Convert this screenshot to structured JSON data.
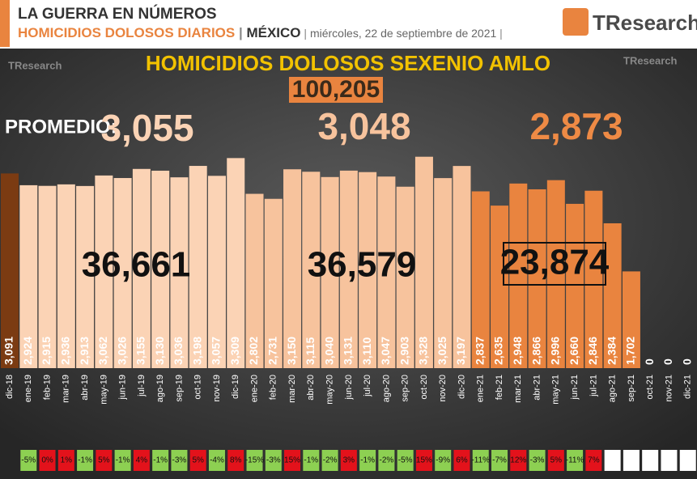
{
  "header": {
    "kicker": "LA GUERRA EN NÚMEROS",
    "subject": "HOMICIDIOS DOLOSOS DIARIOS",
    "country": "MÉXICO",
    "date": "miércoles, 22 de septiembre de 2021",
    "logo": "TResearch"
  },
  "chart_data": {
    "type": "bar",
    "title": "HOMICIDIOS DOLOSOS SEXENIO AMLO",
    "total_label": "100,205",
    "average_caption": "PROMEDIO:",
    "averages": [
      "3,055",
      "3,048",
      "2,873"
    ],
    "group_totals": [
      "36,661",
      "36,579",
      "23,874"
    ],
    "categories": [
      "dic-18",
      "ene-19",
      "feb-19",
      "mar-19",
      "abr-19",
      "may-19",
      "jun-19",
      "jul-19",
      "ago-19",
      "sep-19",
      "oct-19",
      "nov-19",
      "dic-19",
      "ene-20",
      "feb-20",
      "mar-20",
      "abr-20",
      "may-20",
      "jun-20",
      "jul-20",
      "ago-20",
      "sep-20",
      "oct-20",
      "nov-20",
      "dic-20",
      "ene-21",
      "feb-21",
      "mar-21",
      "abr-21",
      "may-21",
      "jun-21",
      "jul-21",
      "ago-21",
      "sep-21",
      "oct-21",
      "nov-21",
      "dic-21"
    ],
    "values": [
      3091,
      2924,
      2915,
      2936,
      2913,
      3062,
      3026,
      3155,
      3130,
      3036,
      3198,
      3057,
      3309,
      2802,
      2731,
      3150,
      3115,
      3040,
      3131,
      3110,
      3047,
      2903,
      3328,
      3025,
      3197,
      2837,
      2635,
      2948,
      2866,
      2996,
      2660,
      2846,
      2384,
      1702,
      0,
      0,
      0
    ],
    "value_labels": [
      "3,091",
      "2,924",
      "2,915",
      "2,936",
      "2,913",
      "3,062",
      "3,026",
      "3,155",
      "3,130",
      "3,036",
      "3,198",
      "3,057",
      "3,309",
      "2,802",
      "2,731",
      "3,150",
      "3,115",
      "3,040",
      "3,131",
      "3,110",
      "3,047",
      "2,903",
      "3,328",
      "3,025",
      "3,197",
      "2,837",
      "2,635",
      "2,948",
      "2,866",
      "2,996",
      "2,660",
      "2,846",
      "2,384",
      "1,702",
      "0",
      "0",
      "0"
    ],
    "colors": [
      "#7b3b12",
      "#fbd3b5",
      "#fbd3b5",
      "#fbd3b5",
      "#fbd3b5",
      "#fbd3b5",
      "#fbd3b5",
      "#fbd3b5",
      "#fbd3b5",
      "#fbd3b5",
      "#fbd3b5",
      "#fbd3b5",
      "#fbd3b5",
      "#f7c39d",
      "#f7c39d",
      "#f7c39d",
      "#f7c39d",
      "#f7c39d",
      "#f7c39d",
      "#f7c39d",
      "#f7c39d",
      "#f7c39d",
      "#f7c39d",
      "#f7c39d",
      "#f7c39d",
      "#e9843f",
      "#e9843f",
      "#e9843f",
      "#e9843f",
      "#e9843f",
      "#e9843f",
      "#e9843f",
      "#e9843f",
      "#e9843f",
      "#e9843f",
      "#e9843f",
      "#e9843f"
    ],
    "ylim": [
      330,
      3600
    ],
    "changes": [
      null,
      -5,
      0,
      1,
      -1,
      5,
      -1,
      4,
      -1,
      -3,
      5,
      -4,
      8,
      -15,
      -3,
      15,
      -1,
      -2,
      3,
      -1,
      -2,
      -5,
      15,
      -9,
      6,
      -11,
      -7,
      12,
      -3,
      5,
      -11,
      7,
      null,
      null,
      null,
      null,
      null
    ],
    "change_labels": [
      null,
      "-5%",
      "0%",
      "1%",
      "-1%",
      "5%",
      "-1%",
      "4%",
      "-1%",
      "-3%",
      "5%",
      "-4%",
      "8%",
      "-15%",
      "-3%",
      "15%",
      "-1%",
      "-2%",
      "3%",
      "-1%",
      "-2%",
      "-5%",
      "15%",
      "-9%",
      "6%",
      "-11%",
      "-7%",
      "12%",
      "-3%",
      "5%",
      "-11%",
      "7%",
      null,
      null,
      null,
      null,
      null
    ],
    "negative_color": "#8dd052",
    "positive_color": "#e3121b"
  }
}
